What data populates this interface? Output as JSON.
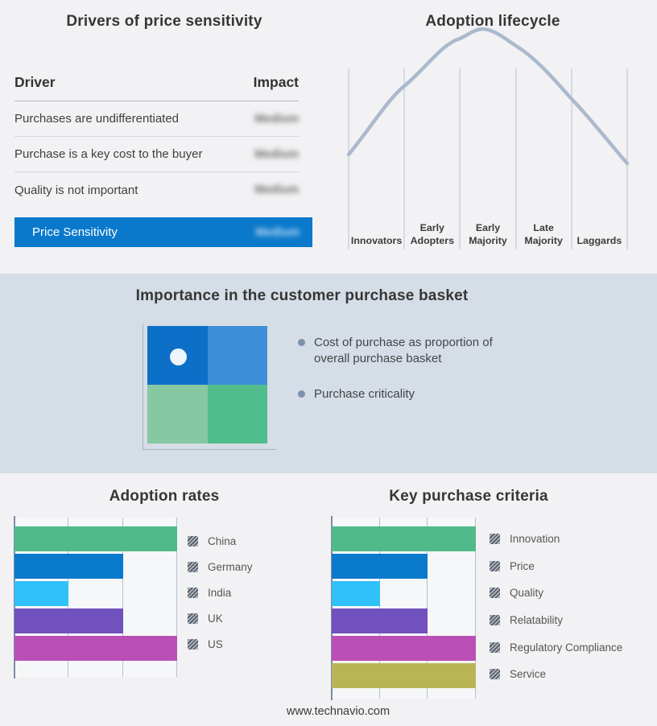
{
  "drivers_table": {
    "title": "Drivers of price sensitivity",
    "col_driver": "Driver",
    "col_impact": "Impact",
    "impact_values_blurred": true,
    "rows": [
      {
        "driver": "Purchases are undifferentiated",
        "impact": "Medium"
      },
      {
        "driver": "Purchase is a key cost to the buyer",
        "impact": "Medium"
      },
      {
        "driver": "Quality is not important",
        "impact": "Medium"
      }
    ],
    "highlight": {
      "driver": "Price Sensitivity",
      "impact": "Medium",
      "color": "#0b79cb"
    }
  },
  "lifecycle": {
    "title": "Adoption lifecycle",
    "stages": [
      "Innovators",
      "Early Adopters",
      "Early Majority",
      "Late Majority",
      "Laggards"
    ],
    "curve_color": "#abb9cd",
    "gridline_color": "#b9c2d1"
  },
  "basket": {
    "title": "Importance in the customer purchase basket",
    "background": "#d5dde7",
    "bullets": [
      "Cost of purchase as proportion of overall purchase basket",
      "Purchase criticality"
    ],
    "quadrant_colors": {
      "top_left": "#0d70c8",
      "top_right": "#3e8ed9",
      "bottom_left": "#85c8a2",
      "bottom_right": "#52bd8c"
    },
    "marker": "white-dot-in-top-left-quadrant"
  },
  "chart_data": [
    {
      "type": "bar",
      "orientation": "horizontal",
      "title": "Adoption rates",
      "categories": [
        "China",
        "Germany",
        "India",
        "UK",
        "US"
      ],
      "values": [
        3,
        2,
        1,
        2,
        3
      ],
      "xlim": [
        0,
        3
      ],
      "grid": true,
      "grid_steps": 3,
      "legend_position": "right",
      "legend_swatch_style": "gray-hatched",
      "colors": [
        "#50ba8b",
        "#0a7acc",
        "#31c1f9",
        "#7051bd",
        "#ba50b6"
      ]
    },
    {
      "type": "bar",
      "orientation": "horizontal",
      "title": "Key purchase criteria",
      "categories": [
        "Innovation",
        "Price",
        "Quality",
        "Relatability",
        "Regulatory Compliance",
        "Service"
      ],
      "values": [
        3,
        2,
        1,
        2,
        3,
        3
      ],
      "xlim": [
        0,
        3
      ],
      "grid": true,
      "grid_steps": 3,
      "legend_position": "right",
      "legend_swatch_style": "gray-hatched",
      "colors": [
        "#50ba8b",
        "#0a7acc",
        "#31c1f9",
        "#7051bd",
        "#ba50b6",
        "#b9b556"
      ]
    }
  ],
  "page": {
    "footer": "www.technavio.com"
  }
}
